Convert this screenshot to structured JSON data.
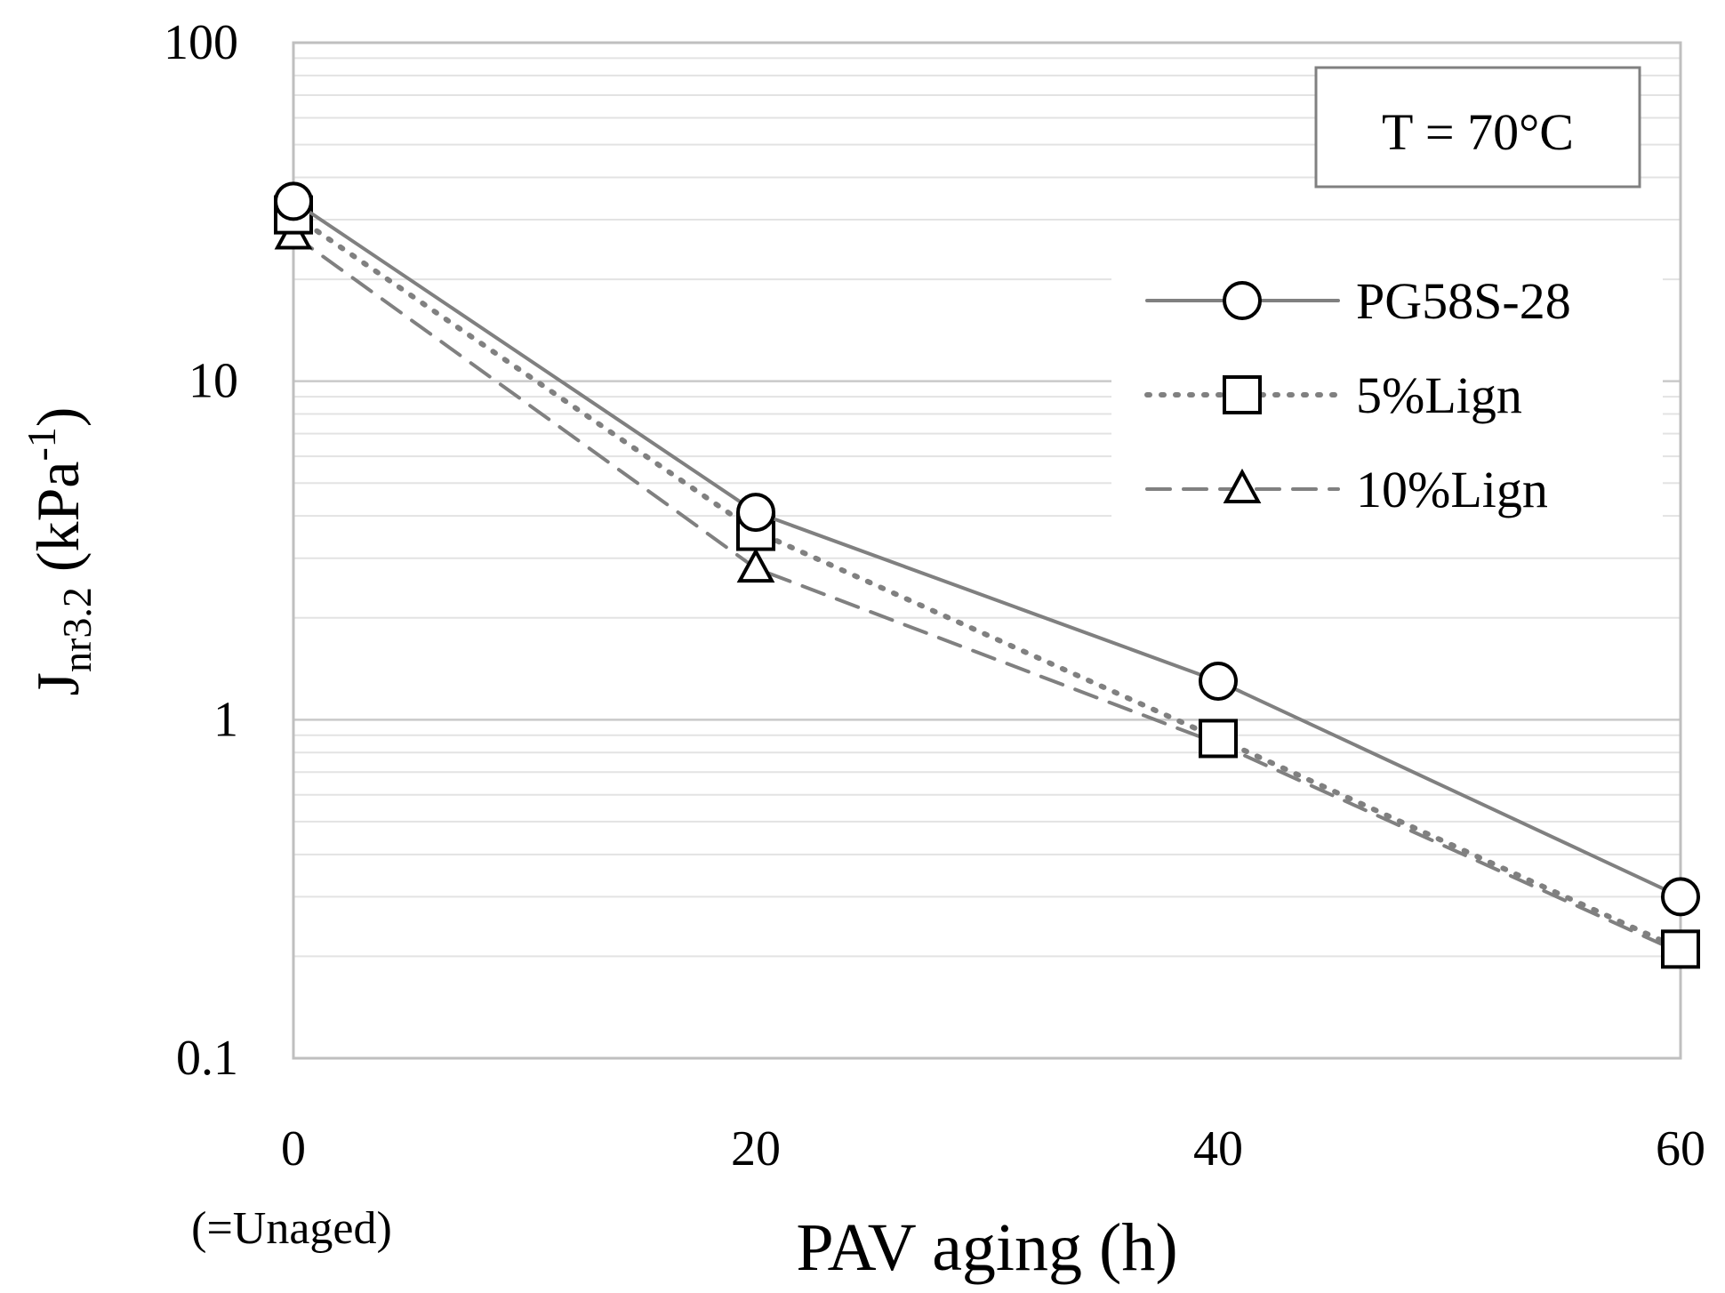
{
  "chart_data": {
    "type": "line",
    "x": [
      0,
      20,
      40,
      60
    ],
    "xlim": [
      0,
      60
    ],
    "ylim": [
      0.1,
      100
    ],
    "yscale": "log",
    "x_ticks": [
      "0",
      "20",
      "40",
      "60"
    ],
    "y_ticks": [
      "0.1",
      "1",
      "10",
      "100"
    ],
    "x_tick_note": "(=Unaged)",
    "xlabel": "PAV aging (h)",
    "ylabel": {
      "main": "J",
      "sub": "nr3.2",
      "unit_pre": " (kPa",
      "sup": "-1",
      "unit_post": ")"
    },
    "annotation": "T = 70°C",
    "legend_position": "right, below annotation",
    "series": [
      {
        "name": "PG58S-28",
        "values": [
          34,
          4.1,
          1.3,
          0.3
        ],
        "marker": "circle",
        "line": "solid",
        "color": "#808080"
      },
      {
        "name": "5%Lign",
        "values": [
          31,
          3.6,
          0.88,
          0.21
        ],
        "marker": "square",
        "line": "dotted",
        "color": "#808080"
      },
      {
        "name": "10%Lign",
        "values": [
          27,
          2.8,
          0.85,
          0.205
        ],
        "marker": "triangle",
        "line": "dashed",
        "color": "#808080"
      }
    ]
  }
}
